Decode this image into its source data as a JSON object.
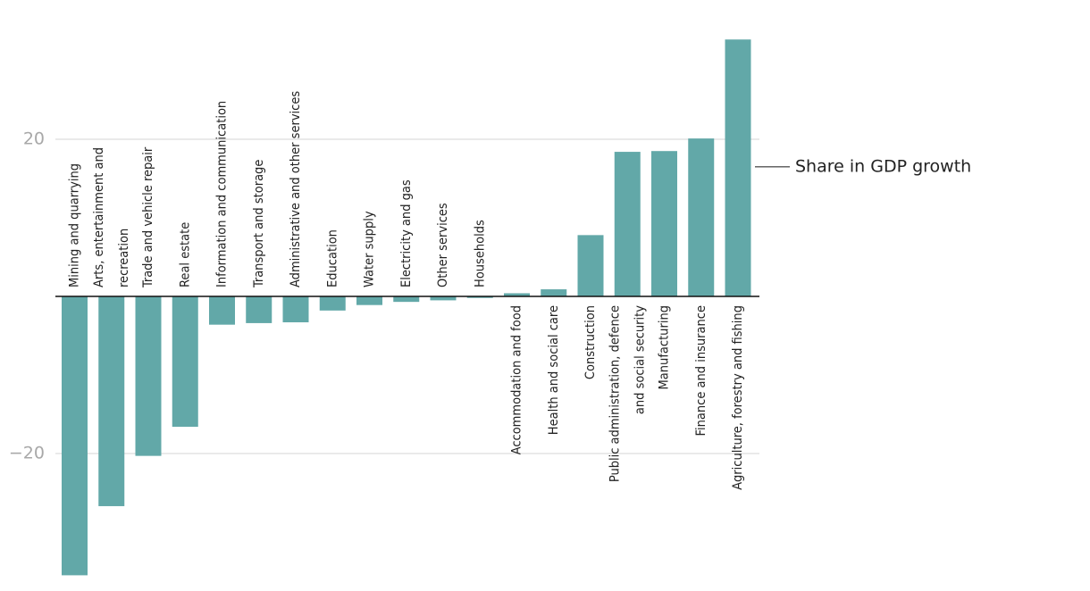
{
  "chart_data": {
    "type": "bar",
    "title": "",
    "xlabel": "",
    "ylabel": "",
    "ylim": [
      -35,
      33
    ],
    "yticks": [
      20,
      -20
    ],
    "grid": true,
    "annotation": "Share in GDP growth",
    "annotation_value": 16.5,
    "colors": {
      "bar": "#62a8a8",
      "grid": "#dddddd",
      "zero": "#111111",
      "tick": "#a8a8a8",
      "text": "#222222"
    },
    "categories": [
      [
        "Mining and quarrying"
      ],
      [
        "Arts, entertainment and",
        "recreation"
      ],
      [
        "Trade and vehicle repair"
      ],
      [
        "Real estate"
      ],
      [
        "Information and communication"
      ],
      [
        "Transport and storage"
      ],
      [
        "Administrative and other services"
      ],
      [
        "Education"
      ],
      [
        "Water supply"
      ],
      [
        "Electricity and gas"
      ],
      [
        "Other services"
      ],
      [
        "Households"
      ],
      [
        "Accommodation and food"
      ],
      [
        "Health and social care"
      ],
      [
        "Construction"
      ],
      [
        "Public administration, defence",
        "and social security"
      ],
      [
        "Manufacturing"
      ],
      [
        "Finance and insurance"
      ],
      [
        "Agriculture, forestry and fishing"
      ]
    ],
    "values": [
      -35.5,
      -26.7,
      -20.3,
      -16.6,
      -3.6,
      -3.4,
      -3.3,
      -1.8,
      -1.1,
      -0.7,
      -0.5,
      -0.2,
      0.4,
      0.9,
      7.8,
      18.4,
      18.5,
      20.1,
      32.7
    ]
  }
}
